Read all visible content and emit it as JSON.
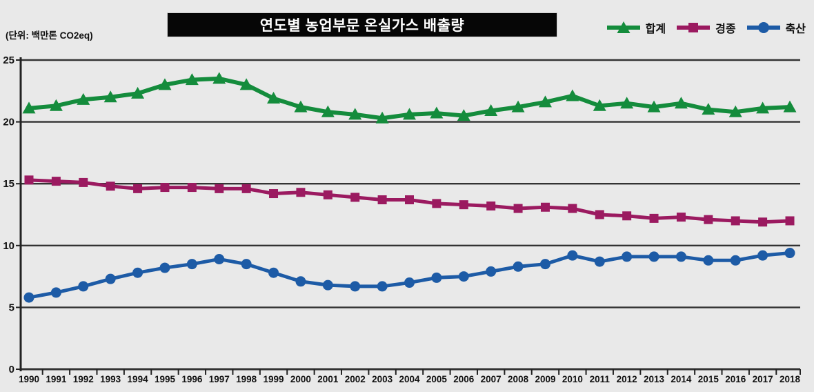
{
  "page": {
    "background": "#e9e9e9"
  },
  "header": {
    "title": "연도별 농업부문 온실가스 배출량",
    "title_bg": "#060606",
    "title_color": "#ffffff",
    "unit_label": "(단위: 백만톤 CO2eq)"
  },
  "legend": {
    "position": "top-right",
    "items": [
      {
        "key": "total",
        "label": "합계",
        "marker": "triangle",
        "color": "#148c3c"
      },
      {
        "key": "crop",
        "label": "경종",
        "marker": "square",
        "color": "#9b1a60"
      },
      {
        "key": "livestock",
        "label": "축산",
        "marker": "circle",
        "color": "#1d5ba6"
      }
    ]
  },
  "chart_data": {
    "type": "line",
    "title": "연도별 농업부문 온실가스 배출량",
    "unit": "백만톤 CO2eq",
    "xlabel": "",
    "ylabel": "",
    "ylim": [
      0,
      25
    ],
    "yticks": [
      0,
      5,
      10,
      15,
      20,
      25
    ],
    "grid": true,
    "legend_position": "top-right",
    "grid_color": "#333333",
    "axis_color": "#222222",
    "x": [
      1990,
      1991,
      1992,
      1993,
      1994,
      1995,
      1996,
      1997,
      1998,
      1999,
      2000,
      2001,
      2002,
      2003,
      2004,
      2005,
      2006,
      2007,
      2008,
      2009,
      2010,
      2011,
      2012,
      2013,
      2014,
      2015,
      2016,
      2017,
      2018
    ],
    "series": [
      {
        "key": "total",
        "name": "합계",
        "marker": "triangle",
        "color": "#148c3c",
        "values": [
          21.1,
          21.3,
          21.8,
          22.0,
          22.3,
          23.0,
          23.4,
          23.5,
          23.0,
          21.9,
          21.2,
          20.8,
          20.6,
          20.3,
          20.6,
          20.7,
          20.5,
          20.9,
          21.2,
          21.6,
          22.1,
          21.3,
          21.5,
          21.2,
          21.5,
          21.0,
          20.8,
          21.1,
          21.2
        ]
      },
      {
        "key": "crop",
        "name": "경종",
        "marker": "square",
        "color": "#9b1a60",
        "values": [
          15.3,
          15.2,
          15.1,
          14.8,
          14.6,
          14.7,
          14.7,
          14.6,
          14.6,
          14.2,
          14.3,
          14.1,
          13.9,
          13.7,
          13.7,
          13.4,
          13.3,
          13.2,
          13.0,
          13.1,
          13.0,
          12.5,
          12.4,
          12.2,
          12.3,
          12.1,
          12.0,
          11.9,
          12.0
        ]
      },
      {
        "key": "livestock",
        "name": "축산",
        "marker": "circle",
        "color": "#1d5ba6",
        "values": [
          5.8,
          6.2,
          6.7,
          7.3,
          7.8,
          8.2,
          8.5,
          8.9,
          8.5,
          7.8,
          7.1,
          6.8,
          6.7,
          6.7,
          7.0,
          7.4,
          7.5,
          7.9,
          8.3,
          8.5,
          9.2,
          8.7,
          9.1,
          9.1,
          9.1,
          8.8,
          8.8,
          9.2,
          9.4
        ]
      }
    ]
  }
}
